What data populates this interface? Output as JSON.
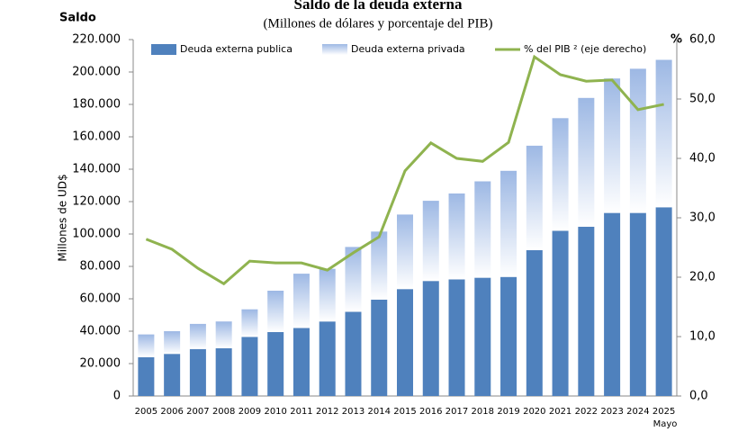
{
  "chart_data": {
    "type": "bar-line",
    "title": "Saldo de la deuda externa",
    "subtitle": "(Millones de dólares y porcentaje del PIB)",
    "left_label": "Saldo",
    "right_label": "%",
    "y_label": "Millones de UD$",
    "annotation": "Mayo",
    "categories": [
      "2005",
      "2006",
      "2007",
      "2008",
      "2009",
      "2010",
      "2011",
      "2012",
      "2013",
      "2014",
      "2015",
      "2016",
      "2017",
      "2018",
      "2019",
      "2020",
      "2021",
      "2022",
      "2023",
      "2024",
      "2025"
    ],
    "series": [
      {
        "name": "Deuda externa publica",
        "color": "#4f81bd",
        "values": [
          24000,
          26000,
          29000,
          29500,
          36500,
          39500,
          42000,
          46000,
          52000,
          59500,
          66000,
          71000,
          72000,
          73000,
          73500,
          90000,
          102000,
          104500,
          113000,
          113000,
          116500
        ]
      },
      {
        "name": "Deuda externa privada",
        "color": "#9db8e4",
        "values": [
          14000,
          14000,
          15500,
          16500,
          17000,
          25500,
          33500,
          32500,
          40000,
          42000,
          46000,
          49500,
          53000,
          59500,
          65500,
          64500,
          69500,
          79500,
          83000,
          89000,
          91000
        ]
      },
      {
        "name": "% del PIB ² (eje derecho)",
        "color": "#8fb34f",
        "axis": "y2",
        "values": [
          26.4,
          24.7,
          21.5,
          18.9,
          22.7,
          22.4,
          22.4,
          21.2,
          24.1,
          26.8,
          37.9,
          42.6,
          40.0,
          39.5,
          42.7,
          57.1,
          54.1,
          53.0,
          53.2,
          48.2,
          49.1
        ]
      }
    ],
    "ylim": [
      0,
      220000
    ],
    "yticks": [
      0,
      {
        "value": 20000,
        "label": "20.000"
      },
      {
        "value": 40000,
        "label": "40.000"
      },
      {
        "value": 60000,
        "label": "60.000"
      },
      {
        "value": 80000,
        "label": "80.000"
      },
      {
        "value": 100000,
        "label": "100.000"
      },
      {
        "value": 120000,
        "label": "120.000"
      },
      {
        "value": 140000,
        "label": "140.000"
      },
      {
        "value": 160000,
        "label": "160.000"
      },
      {
        "value": 180000,
        "label": "180.000"
      },
      {
        "value": 200000,
        "label": "200.000"
      },
      {
        "value": 220000,
        "label": "220.000"
      }
    ],
    "y2lim": [
      0,
      60
    ],
    "y2ticks": [
      {
        "value": 0,
        "label": "0,0"
      },
      {
        "value": 10,
        "label": "10,0"
      },
      {
        "value": 20,
        "label": "20,0"
      },
      {
        "value": 30,
        "label": "30,0"
      },
      {
        "value": 40,
        "label": "40,0"
      },
      {
        "value": 50,
        "label": "50,0"
      },
      {
        "value": 60,
        "label": "60,0"
      }
    ]
  }
}
